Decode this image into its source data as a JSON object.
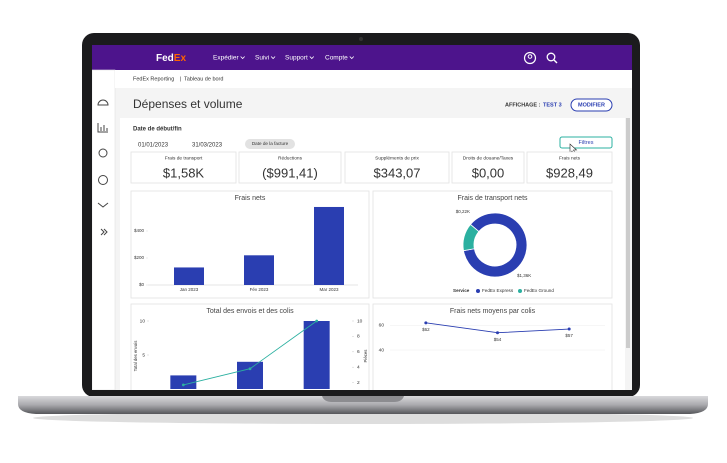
{
  "nav": {
    "logo_fed": "Fed",
    "logo_ex": "Ex",
    "menu": [
      "Expédier",
      "Suivi",
      "Support",
      "Compte"
    ]
  },
  "breadcrumb": [
    "FedEx Reporting",
    "Tableau de bord"
  ],
  "header": {
    "title": "Dépenses et volume",
    "view_label": "AFFICHAGE :",
    "view_name": "TEST 3",
    "edit_button": "MODIFIER"
  },
  "filters": {
    "label": "Date de début/fin",
    "start": "01/01/2023",
    "end": "31/03/2023",
    "date_type": "Date de la facture",
    "button": "Filtres"
  },
  "kpis": [
    {
      "label": "Frais de transport",
      "value": "$1,58K"
    },
    {
      "label": "Réductions",
      "value": "($991,41)"
    },
    {
      "label": "Suppléments de prix",
      "value": "$343,07"
    },
    {
      "label": "Droits de douane/Taxes",
      "value": "$0,00"
    },
    {
      "label": "Frais nets",
      "value": "$928,49"
    }
  ],
  "charts": [
    {
      "type": "bar",
      "title": "Frais nets",
      "categories": [
        "Jan 2023",
        "Fév 2023",
        "Mar 2023"
      ],
      "values": [
        130,
        220,
        578
      ],
      "color": "#2a3eb1",
      "ylim": [
        0,
        600
      ],
      "yticks": [
        {
          "value": 0,
          "label": "$0"
        },
        {
          "value": 200,
          "label": "$200"
        },
        {
          "value": 400,
          "label": "$400"
        }
      ]
    },
    {
      "type": "pie",
      "title": "Frais de transport nets",
      "legend_title": "Service",
      "categories": [
        "FedEx Express",
        "FedEx Ground"
      ],
      "values": [
        1.36,
        0.22
      ],
      "value_labels": [
        "$1,36K",
        "$0,22K"
      ],
      "colors": [
        "#2a3eb1",
        "#2bb0a0"
      ]
    },
    {
      "type": "bar_line",
      "title": "Total des envois et des colis",
      "categories": [
        null,
        null,
        null
      ],
      "ylabel": "Total des envois",
      "y2label": "Pièces",
      "ylim": [
        0,
        10
      ],
      "yticks": [
        5,
        10
      ],
      "y2lim": [
        0,
        10
      ],
      "y2ticks": [
        2,
        4,
        6,
        8,
        10
      ],
      "series": [
        {
          "type": "bar",
          "color": "#2a3eb1",
          "values": [
            2,
            4,
            10
          ]
        },
        {
          "type": "line",
          "color": "#2bb0a0",
          "axis": "y2",
          "values": [
            1.7,
            3.8,
            10
          ]
        }
      ]
    },
    {
      "type": "line",
      "title": "Frais nets moyens par colis",
      "categories": [
        null,
        null,
        null
      ],
      "values": [
        62,
        54,
        57
      ],
      "value_labels": [
        "$62",
        "$54",
        "$57"
      ],
      "color": "#2a3eb1",
      "ylim": [
        40,
        70
      ],
      "yticks": [
        40,
        60
      ]
    }
  ]
}
